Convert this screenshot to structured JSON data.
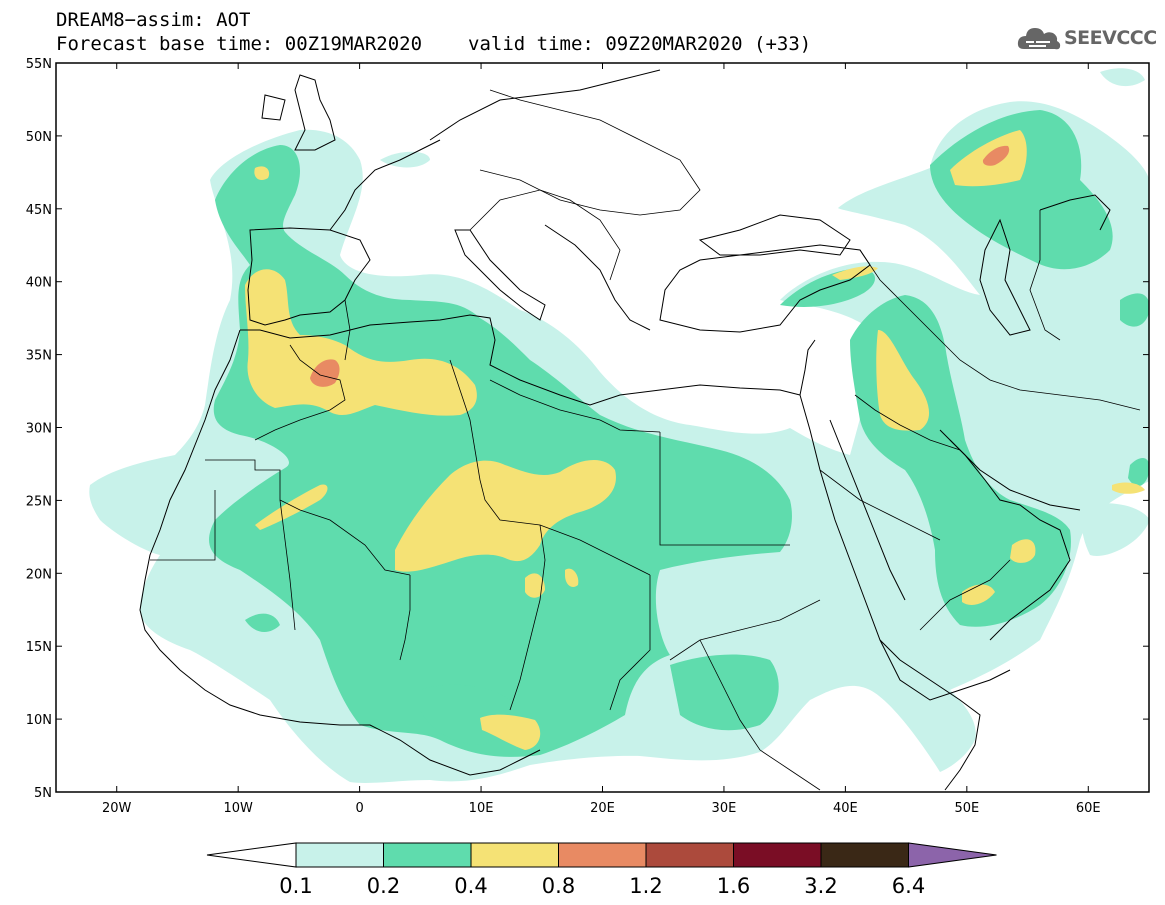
{
  "header": {
    "line1": "DREAM8−assim: AOT",
    "base_time": "Forecast base time: 00Z19MAR2020",
    "valid_time": "valid time: 09Z20MAR2020 (+33)"
  },
  "logo": {
    "text": "SEEVCCC",
    "icon": "cloud-icon"
  },
  "map": {
    "lon_range": [
      -25,
      65
    ],
    "lat_range": [
      5,
      55
    ],
    "lat_labels": [
      "55N",
      "50N",
      "45N",
      "40N",
      "35N",
      "30N",
      "25N",
      "20N",
      "15N",
      "10N",
      "5N"
    ],
    "lon_labels": [
      "20W",
      "10W",
      "0",
      "10E",
      "20E",
      "30E",
      "40E",
      "50E",
      "60E"
    ]
  },
  "colorbar": {
    "labels": [
      "0.1",
      "0.2",
      "0.4",
      "0.8",
      "1.2",
      "1.6",
      "3.2",
      "6.4"
    ],
    "colors": [
      "#c8f2ea",
      "#5fdcad",
      "#f5e275",
      "#e88a63",
      "#ac4a3c",
      "#7a0d25",
      "#3a2816",
      "#8c64aa"
    ]
  }
}
